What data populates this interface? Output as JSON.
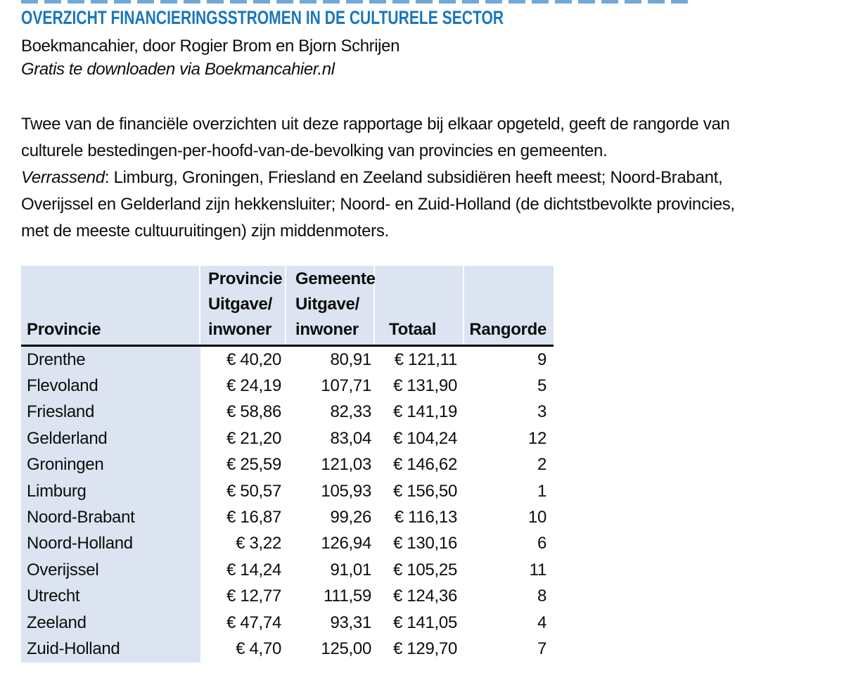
{
  "page": {
    "title": "OVERZICHT FINANCIERINGSSTROMEN IN DE CULTURELE SECTOR",
    "byline": "Boekmancahier, door Rogier Brom en Bjorn Schrijen",
    "download_note": "Gratis te downloaden via Boekmancahier.nl"
  },
  "intro": {
    "lines": [
      {
        "text": "Twee van de financiële overzichten uit deze rapportage bij elkaar opgeteld, geeft de rangorde van"
      },
      {
        "text": "culturele bestedingen-per-hoofd-van-de-bevolking van provincies en gemeenten."
      },
      {
        "italic_lead": "Verrassend",
        "text": ": Limburg, Groningen, Friesland en Zeeland subsidiëren heeft meest; Noord-Brabant,"
      },
      {
        "text": "Overijssel en Gelderland zijn hekkensluiter; Noord- en Zuid-Holland (de dichtstbevolkte provincies,"
      },
      {
        "text": "met de meeste cultuuruitingen) zijn middenmoters."
      }
    ]
  },
  "table": {
    "header": {
      "col1": [
        "Provincie"
      ],
      "col2": [
        "Provincie",
        "Uitgave/",
        "inwoner"
      ],
      "col3": [
        "Gemeente",
        "Uitgave/",
        "inwoner"
      ],
      "col4": [
        "Totaal"
      ],
      "col5": [
        "Rangorde"
      ]
    },
    "rows": [
      [
        "Drenthe",
        "€ 40,20",
        "80,91",
        "€ 121,11",
        "9"
      ],
      [
        "Flevoland",
        "€ 24,19",
        "107,71",
        "€ 131,90",
        "5"
      ],
      [
        "Friesland",
        "€ 58,86",
        "82,33",
        "€ 141,19",
        "3"
      ],
      [
        "Gelderland",
        "€ 21,20",
        "83,04",
        "€ 104,24",
        "12"
      ],
      [
        "Groningen",
        "€ 25,59",
        "121,03",
        "€ 146,62",
        "2"
      ],
      [
        "Limburg",
        "€ 50,57",
        "105,93",
        "€ 156,50",
        "1"
      ],
      [
        "Noord-Brabant",
        "€ 16,87",
        "99,26",
        "€ 116,13",
        "10"
      ],
      [
        "Noord-Holland",
        "€ 3,22",
        "126,94",
        "€ 130,16",
        "6"
      ],
      [
        "Overijssel",
        "€ 14,24",
        "91,01",
        "€ 105,25",
        "11"
      ],
      [
        "Utrecht",
        "€ 12,77",
        "111,59",
        "€ 124,36",
        "8"
      ],
      [
        "Zeeland",
        "€ 47,74",
        "93,31",
        "€ 141,05",
        "4"
      ],
      [
        "Zuid-Holland",
        "€ 4,70",
        "125,00",
        "€ 129,70",
        "7"
      ]
    ]
  },
  "colors": {
    "title_blue": "#1976bd",
    "table_header_bg": "#dbe4f0",
    "text_black": "#0d0d0d"
  }
}
